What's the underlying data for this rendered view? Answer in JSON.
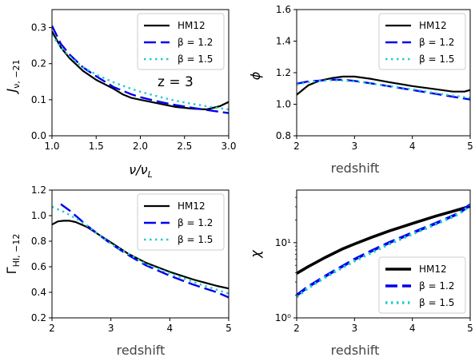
{
  "colors": {
    "hm12": "#000000",
    "beta12": "#0000ee",
    "beta15": "#22cccc"
  },
  "chart_data": [
    {
      "type": "line",
      "id": "J",
      "xlabel": "ν/ν",
      "xlabel_sub": "L",
      "ylabel": "J",
      "ylabel_sub": "ν, −21",
      "annotation": "z = 3",
      "xlim": [
        1.0,
        3.0
      ],
      "ylim": [
        0.0,
        0.35
      ],
      "yscale": "linear",
      "xticks": [
        1.0,
        1.5,
        2.0,
        2.5,
        3.0
      ],
      "xtick_labels": [
        "1.0",
        "1.5",
        "2.0",
        "2.5",
        "3.0"
      ],
      "yticks": [
        0.0,
        0.1,
        0.2,
        0.3
      ],
      "ytick_labels": [
        "0.0",
        "0.1",
        "0.2",
        "0.3"
      ],
      "legend": {
        "position": "top-right",
        "entries": [
          "HM12",
          "β = 1.2",
          "β = 1.5"
        ]
      },
      "series": [
        {
          "name": "HM12",
          "style": "solid",
          "x": [
            1.0,
            1.1,
            1.2,
            1.35,
            1.5,
            1.7,
            1.8,
            1.9,
            2.0,
            2.2,
            2.4,
            2.6,
            2.75,
            2.9,
            3.0
          ],
          "y": [
            0.29,
            0.245,
            0.215,
            0.18,
            0.155,
            0.13,
            0.115,
            0.105,
            0.1,
            0.09,
            0.08,
            0.075,
            0.073,
            0.082,
            0.094
          ]
        },
        {
          "name": "β = 1.2",
          "style": "dashed",
          "x": [
            1.0,
            1.1,
            1.2,
            1.35,
            1.5,
            1.7,
            1.8,
            1.9,
            2.0,
            2.2,
            2.4,
            2.6,
            2.8,
            3.0
          ],
          "y": [
            0.305,
            0.255,
            0.225,
            0.19,
            0.165,
            0.135,
            0.125,
            0.115,
            0.107,
            0.095,
            0.085,
            0.077,
            0.07,
            0.063
          ]
        },
        {
          "name": "β = 1.5",
          "style": "dotted",
          "x": [
            1.0,
            1.1,
            1.2,
            1.35,
            1.5,
            1.7,
            1.9,
            2.0,
            2.2,
            2.4,
            2.6,
            2.8,
            3.0
          ],
          "y": [
            0.28,
            0.245,
            0.22,
            0.19,
            0.17,
            0.148,
            0.13,
            0.122,
            0.109,
            0.097,
            0.088,
            0.08,
            0.073
          ]
        }
      ]
    },
    {
      "type": "line",
      "id": "phi",
      "xlabel": "redshift",
      "ylabel": "ϕ",
      "xlim": [
        2,
        5
      ],
      "ylim": [
        0.8,
        1.6
      ],
      "yscale": "linear",
      "xticks": [
        2,
        3,
        4,
        5
      ],
      "xtick_labels": [
        "2",
        "3",
        "4",
        "5"
      ],
      "yticks": [
        0.8,
        1.0,
        1.2,
        1.4,
        1.6
      ],
      "ytick_labels": [
        "0.8",
        "1.0",
        "1.2",
        "1.4",
        "1.6"
      ],
      "legend": {
        "position": "top-right",
        "entries": [
          "HM12",
          "β = 1.2",
          "β = 1.5"
        ]
      },
      "series": [
        {
          "name": "HM12",
          "style": "solid",
          "x": [
            2.0,
            2.2,
            2.4,
            2.6,
            2.8,
            3.0,
            3.3,
            3.6,
            4.0,
            4.4,
            4.7,
            4.9,
            5.0
          ],
          "y": [
            1.06,
            1.12,
            1.15,
            1.165,
            1.175,
            1.175,
            1.16,
            1.14,
            1.115,
            1.095,
            1.08,
            1.08,
            1.09
          ]
        },
        {
          "name": "β = 1.2",
          "style": "dashed",
          "x": [
            2.0,
            2.2,
            2.4,
            2.6,
            2.8,
            3.0,
            3.5,
            4.0,
            4.5,
            5.0
          ],
          "y": [
            1.13,
            1.145,
            1.15,
            1.155,
            1.155,
            1.148,
            1.12,
            1.09,
            1.06,
            1.03
          ]
        },
        {
          "name": "β = 1.5",
          "style": "dotted",
          "x": [
            2.0,
            2.2,
            2.4,
            2.6,
            2.8,
            3.0,
            3.5,
            4.0,
            4.5,
            5.0
          ],
          "y": [
            1.125,
            1.14,
            1.148,
            1.152,
            1.15,
            1.145,
            1.12,
            1.095,
            1.065,
            1.04
          ]
        }
      ]
    },
    {
      "type": "line",
      "id": "gamma",
      "xlabel": "redshift",
      "ylabel": "Γ",
      "ylabel_sub": "HI, −12",
      "xlim": [
        2,
        5
      ],
      "ylim": [
        0.2,
        1.2
      ],
      "yscale": "linear",
      "xticks": [
        2,
        3,
        4,
        5
      ],
      "xtick_labels": [
        "2",
        "3",
        "4",
        "5"
      ],
      "yticks": [
        0.2,
        0.4,
        0.6,
        0.8,
        1.0,
        1.2
      ],
      "ytick_labels": [
        "0.2",
        "0.4",
        "0.6",
        "0.8",
        "1.0",
        "1.2"
      ],
      "legend": {
        "position": "top-right",
        "entries": [
          "HM12",
          "β = 1.2",
          "β = 1.5"
        ]
      },
      "series": [
        {
          "name": "HM12",
          "style": "solid",
          "x": [
            2.0,
            2.1,
            2.2,
            2.3,
            2.4,
            2.6,
            2.8,
            3.0,
            3.3,
            3.6,
            4.0,
            4.4,
            4.8,
            5.0
          ],
          "y": [
            0.93,
            0.955,
            0.96,
            0.96,
            0.95,
            0.91,
            0.85,
            0.79,
            0.7,
            0.63,
            0.56,
            0.5,
            0.45,
            0.43
          ]
        },
        {
          "name": "β = 1.2",
          "style": "dashed",
          "x": [
            2.15,
            2.3,
            2.45,
            2.6,
            2.8,
            3.0,
            3.3,
            3.6,
            4.0,
            4.4,
            4.8,
            5.0
          ],
          "y": [
            1.09,
            1.04,
            0.98,
            0.92,
            0.85,
            0.78,
            0.69,
            0.61,
            0.53,
            0.46,
            0.4,
            0.36
          ]
        },
        {
          "name": "β = 1.5",
          "style": "dotted",
          "x": [
            2.0,
            2.2,
            2.4,
            2.6,
            2.8,
            3.0,
            3.3,
            3.6,
            4.0,
            4.4,
            4.8,
            5.0
          ],
          "y": [
            1.07,
            1.03,
            0.98,
            0.92,
            0.85,
            0.78,
            0.7,
            0.62,
            0.55,
            0.48,
            0.42,
            0.39
          ]
        }
      ]
    },
    {
      "type": "line",
      "id": "chi",
      "xlabel": "redshift",
      "ylabel": "χ",
      "xlim": [
        2,
        5
      ],
      "ylim": [
        1,
        50
      ],
      "yscale": "log",
      "xticks": [
        2,
        3,
        4,
        5
      ],
      "xtick_labels": [
        "2",
        "3",
        "4",
        "5"
      ],
      "yticks": [
        1,
        10
      ],
      "ytick_labels": [
        "10⁰",
        "10¹"
      ],
      "legend": {
        "position": "bottom-right",
        "entries": [
          "HM12",
          "β = 1.2",
          "β = 1.5"
        ]
      },
      "series": [
        {
          "name": "HM12",
          "style": "solid",
          "x": [
            2.0,
            2.2,
            2.5,
            2.8,
            3.0,
            3.3,
            3.6,
            4.0,
            4.4,
            4.8,
            5.0
          ],
          "y": [
            3.9,
            4.8,
            6.4,
            8.3,
            9.6,
            11.8,
            14.3,
            18.0,
            22.5,
            27.5,
            30.5
          ]
        },
        {
          "name": "β = 1.2",
          "style": "dashed",
          "x": [
            2.0,
            2.2,
            2.5,
            2.8,
            3.0,
            3.3,
            3.6,
            4.0,
            4.4,
            4.8,
            5.0
          ],
          "y": [
            2.0,
            2.6,
            3.6,
            4.9,
            6.0,
            7.8,
            10.0,
            13.5,
            18.0,
            24.5,
            32.0
          ]
        },
        {
          "name": "β = 1.5",
          "style": "dotted",
          "x": [
            2.0,
            2.2,
            2.5,
            2.8,
            3.0,
            3.3,
            3.6,
            4.0,
            4.4,
            4.8,
            5.0
          ],
          "y": [
            1.9,
            2.5,
            3.5,
            4.7,
            5.7,
            7.4,
            9.6,
            13.0,
            17.5,
            24.0,
            31.0
          ]
        }
      ]
    }
  ]
}
